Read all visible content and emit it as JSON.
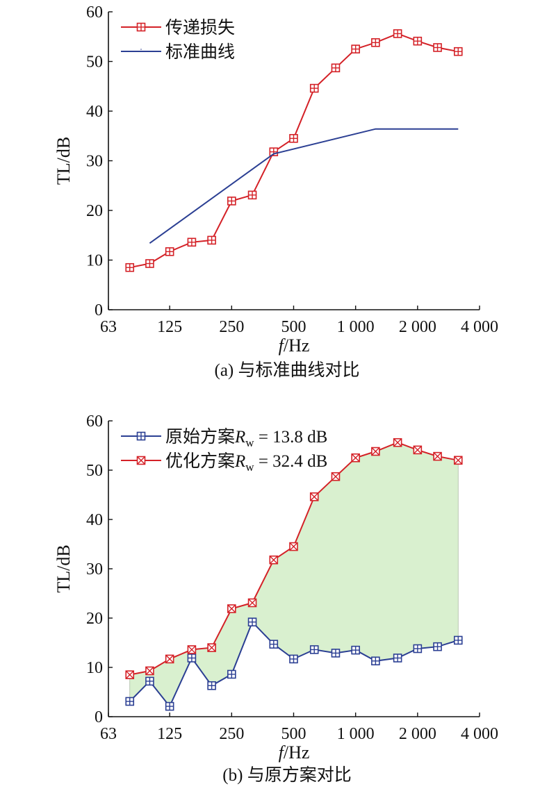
{
  "chart_data": [
    {
      "type": "line",
      "caption": "(a) 与标准曲线对比",
      "xlabel_italic": "f",
      "xlabel_unit": "/Hz",
      "ylabel": "TL/dB",
      "x_scale": "log",
      "xlim": [
        63,
        4000
      ],
      "ylim": [
        0,
        60
      ],
      "x_tick_values": [
        63,
        125,
        250,
        500,
        1000,
        2000,
        4000
      ],
      "x_tick_labels": [
        "63",
        "125",
        "250",
        "500",
        "1 000",
        "2 000",
        "4 000"
      ],
      "y_ticks": [
        0,
        10,
        20,
        30,
        40,
        50,
        60
      ],
      "legend_position": "top-left",
      "series": [
        {
          "name": "传递损失",
          "color": "#d42127",
          "marker": "square-plus",
          "x": [
            80,
            100,
            125,
            160,
            200,
            250,
            315,
            400,
            500,
            630,
            800,
            1000,
            1250,
            1600,
            2000,
            2500,
            3150
          ],
          "y": [
            8.5,
            9.3,
            11.7,
            13.6,
            14.0,
            21.9,
            23.1,
            31.8,
            34.5,
            44.6,
            48.7,
            52.5,
            53.8,
            55.6,
            54.1,
            52.8,
            52.0
          ]
        },
        {
          "name": "标准曲线",
          "color": "#2b3f93",
          "marker": "none",
          "x": [
            100,
            400,
            1250,
            3150
          ],
          "y": [
            13.4,
            31.4,
            36.4,
            36.4
          ]
        }
      ]
    },
    {
      "type": "area",
      "caption": "(b) 与原方案对比",
      "xlabel_italic": "f",
      "xlabel_unit": "/Hz",
      "ylabel": "TL/dB",
      "x_scale": "log",
      "xlim": [
        63,
        4000
      ],
      "ylim": [
        0,
        60
      ],
      "x_tick_values": [
        63,
        125,
        250,
        500,
        1000,
        2000,
        4000
      ],
      "x_tick_labels": [
        "63",
        "125",
        "250",
        "500",
        "1 000",
        "2 000",
        "4 000"
      ],
      "y_ticks": [
        0,
        10,
        20,
        30,
        40,
        50,
        60
      ],
      "legend_position": "top-left",
      "fill_between_color": "#d9f0cf",
      "series": [
        {
          "name_prefix": "原始方案",
          "name_var": "R",
          "name_sub": "w",
          "name_suffix": " = 13.8 dB",
          "color": "#2b3f93",
          "marker": "square-plus",
          "x": [
            80,
            100,
            125,
            160,
            200,
            250,
            315,
            400,
            500,
            630,
            800,
            1000,
            1250,
            1600,
            2000,
            2500,
            3150
          ],
          "y": [
            3.1,
            7.2,
            2.1,
            11.9,
            6.3,
            8.6,
            19.2,
            14.7,
            11.7,
            13.6,
            12.9,
            13.5,
            11.3,
            11.9,
            13.8,
            14.2,
            15.5
          ]
        },
        {
          "name_prefix": "优化方案",
          "name_var": "R",
          "name_sub": "w",
          "name_suffix": " = 32.4 dB",
          "color": "#d42127",
          "marker": "square-x",
          "x": [
            80,
            100,
            125,
            160,
            200,
            250,
            315,
            400,
            500,
            630,
            800,
            1000,
            1250,
            1600,
            2000,
            2500,
            3150
          ],
          "y": [
            8.5,
            9.3,
            11.7,
            13.6,
            14.0,
            21.9,
            23.1,
            31.8,
            34.5,
            44.6,
            48.7,
            52.5,
            53.8,
            55.6,
            54.1,
            52.8,
            52.0
          ]
        }
      ]
    }
  ]
}
